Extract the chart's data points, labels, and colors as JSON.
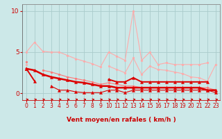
{
  "bg_color": "#cce8e8",
  "grid_color": "#aacccc",
  "xlabel": "Vent moyen/en rafales ( km/h )",
  "xlabel_color": "#cc0000",
  "x": [
    0,
    1,
    2,
    3,
    4,
    5,
    6,
    7,
    8,
    9,
    10,
    11,
    12,
    13,
    14,
    15,
    16,
    17,
    18,
    19,
    20,
    21,
    22,
    23
  ],
  "ylim": [
    -0.8,
    10.8
  ],
  "xlim": [
    -0.5,
    23.5
  ],
  "yticks": [
    0,
    5,
    10
  ],
  "series": [
    {
      "color": "#ffaaaa",
      "lw": 0.8,
      "marker": "o",
      "ms": 2.0,
      "y": [
        5.0,
        6.2,
        5.1,
        5.0,
        5.0,
        4.6,
        4.2,
        3.9,
        3.6,
        3.2,
        5.0,
        4.5,
        4.0,
        10.0,
        4.0,
        5.0,
        3.5,
        3.7,
        3.5,
        3.5,
        3.5,
        3.5,
        3.7,
        null
      ]
    },
    {
      "color": "#ffaaaa",
      "lw": 0.8,
      "marker": "o",
      "ms": 2.0,
      "y": [
        3.5,
        null,
        null,
        null,
        null,
        null,
        null,
        null,
        null,
        null,
        3.3,
        2.9,
        2.5,
        4.3,
        2.3,
        3.3,
        2.9,
        2.8,
        2.6,
        2.4,
        2.0,
        1.9,
        1.5,
        3.5
      ]
    },
    {
      "color": "#ff7777",
      "lw": 0.8,
      "marker": "o",
      "ms": 2.0,
      "y": [
        3.8,
        null,
        2.8,
        2.6,
        2.3,
        2.0,
        1.8,
        1.6,
        1.4,
        1.1,
        1.3,
        1.1,
        0.9,
        0.9,
        0.7,
        0.7,
        0.7,
        0.7,
        0.7,
        0.7,
        0.7,
        0.7,
        0.7,
        0.4
      ]
    },
    {
      "color": "#dd0000",
      "lw": 1.4,
      "marker": "^",
      "ms": 3.0,
      "y": [
        3.0,
        1.5,
        null,
        null,
        null,
        null,
        null,
        null,
        null,
        null,
        1.7,
        1.4,
        1.4,
        1.9,
        1.4,
        1.4,
        1.4,
        1.4,
        1.4,
        1.4,
        1.4,
        1.4,
        1.4,
        null
      ]
    },
    {
      "color": "#dd0000",
      "lw": 1.8,
      "marker": "^",
      "ms": 3.0,
      "y": [
        3.0,
        2.8,
        2.3,
        2.0,
        1.8,
        1.6,
        1.4,
        1.3,
        1.1,
        0.9,
        0.9,
        0.7,
        0.7,
        0.7,
        0.7,
        0.7,
        0.7,
        0.7,
        0.7,
        0.7,
        0.7,
        0.7,
        0.4,
        0.4
      ]
    },
    {
      "color": "#dd0000",
      "lw": 0.8,
      "marker": "^",
      "ms": 3.0,
      "y": [
        3.0,
        null,
        null,
        0.9,
        0.4,
        0.4,
        0.2,
        0.1,
        0.1,
        0.1,
        0.4,
        0.4,
        0.1,
        0.4,
        0.4,
        0.4,
        0.4,
        0.4,
        0.4,
        0.4,
        0.4,
        0.4,
        0.4,
        0.1
      ]
    }
  ],
  "tick_label_color": "#cc0000",
  "tick_fontsize": 5.5,
  "ylabel_fontsize": 6.5,
  "xlabel_fontsize": 6.5
}
